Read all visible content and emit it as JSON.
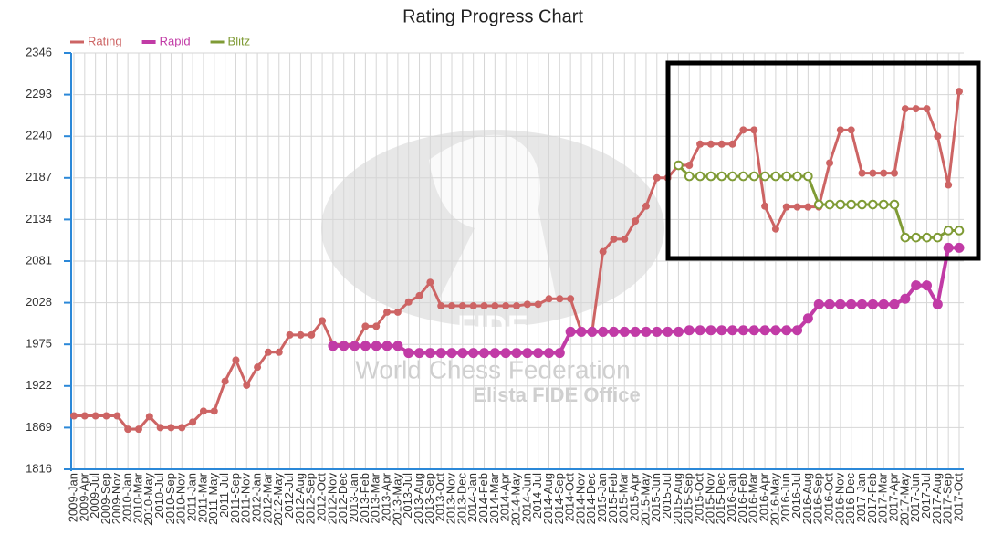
{
  "chart_data": {
    "type": "line",
    "title": "Rating Progress Chart",
    "categories": [
      "2009-Jan",
      "2009-Apr",
      "2009-Jul",
      "2009-Sep",
      "2009-Nov",
      "2010-Jan",
      "2010-Mar",
      "2010-May",
      "2010-Jul",
      "2010-Sep",
      "2010-Nov",
      "2011-Jan",
      "2011-Mar",
      "2011-May",
      "2011-Jul",
      "2011-Sep",
      "2011-Nov",
      "2012-Jan",
      "2012-Mar",
      "2012-May",
      "2012-Jul",
      "2012-Aug",
      "2012-Sep",
      "2012-Oct",
      "2012-Nov",
      "2012-Dec",
      "2013-Jan",
      "2013-Feb",
      "2013-Mar",
      "2013-Apr",
      "2013-May",
      "2013-Jul",
      "2013-Aug",
      "2013-Sep",
      "2013-Oct",
      "2013-Nov",
      "2013-Dec",
      "2014-Jan",
      "2014-Feb",
      "2014-Mar",
      "2014-Apr",
      "2014-May",
      "2014-Jun",
      "2014-Jul",
      "2014-Aug",
      "2014-Sep",
      "2014-Oct",
      "2014-Nov",
      "2014-Dec",
      "2015-Jan",
      "2015-Feb",
      "2015-Mar",
      "2015-Apr",
      "2015-May",
      "2015-Jun",
      "2015-Jul",
      "2015-Aug",
      "2015-Sep",
      "2015-Oct",
      "2015-Nov",
      "2015-Dec",
      "2016-Jan",
      "2016-Feb",
      "2016-Mar",
      "2016-Apr",
      "2016-May",
      "2016-Jun",
      "2016-Jul",
      "2016-Aug",
      "2016-Sep",
      "2016-Oct",
      "2016-Nov",
      "2016-Dec",
      "2017-Jan",
      "2017-Feb",
      "2017-Mar",
      "2017-Apr",
      "2017-May",
      "2017-Jun",
      "2017-Jul",
      "2017-Aug",
      "2017-Sep",
      "2017-Oct"
    ],
    "series": [
      {
        "name": "Rating",
        "color": "#cd6464",
        "marker": "dot",
        "values": [
          1884,
          1884,
          1884,
          1884,
          1884,
          1867,
          1867,
          1883,
          1869,
          1869,
          1869,
          1876,
          1890,
          1890,
          1928,
          1955,
          1923,
          1946,
          1965,
          1965,
          1987,
          1987,
          1987,
          2005,
          1975,
          1975,
          1975,
          1998,
          1998,
          2016,
          2016,
          2029,
          2037,
          2054,
          2024,
          2024,
          2024,
          2024,
          2024,
          2024,
          2024,
          2024,
          2026,
          2026,
          2033,
          2033,
          2033,
          1991,
          1991,
          2093,
          2109,
          2109,
          2132,
          2151,
          2187,
          2187,
          2203,
          2203,
          2230,
          2230,
          2230,
          2230,
          2248,
          2248,
          2151,
          2122,
          2150,
          2150,
          2150,
          2150,
          2206,
          2248,
          2248,
          2193,
          2193,
          2193,
          2193,
          2275,
          2275,
          2275,
          2240,
          2178,
          2297
        ]
      },
      {
        "name": "Rapid",
        "color": "#c13ba6",
        "marker": "big",
        "values": [
          null,
          null,
          null,
          null,
          null,
          null,
          null,
          null,
          null,
          null,
          null,
          null,
          null,
          null,
          null,
          null,
          null,
          null,
          null,
          null,
          null,
          null,
          null,
          null,
          1973,
          1973,
          1973,
          1973,
          1973,
          1973,
          1973,
          1964,
          1964,
          1964,
          1964,
          1964,
          1964,
          1964,
          1964,
          1964,
          1964,
          1964,
          1964,
          1964,
          1964,
          1964,
          1991,
          1991,
          1991,
          1991,
          1991,
          1991,
          1991,
          1991,
          1991,
          1991,
          1991,
          1993,
          1993,
          1993,
          1993,
          1993,
          1993,
          1993,
          1993,
          1993,
          1993,
          1993,
          2008,
          2026,
          2026,
          2026,
          2026,
          2026,
          2026,
          2026,
          2026,
          2033,
          2050,
          2050,
          2026,
          2098,
          2098
        ]
      },
      {
        "name": "Blitz",
        "color": "#7f9b35",
        "marker": "ring",
        "values": [
          null,
          null,
          null,
          null,
          null,
          null,
          null,
          null,
          null,
          null,
          null,
          null,
          null,
          null,
          null,
          null,
          null,
          null,
          null,
          null,
          null,
          null,
          null,
          null,
          null,
          null,
          null,
          null,
          null,
          null,
          null,
          null,
          null,
          null,
          null,
          null,
          null,
          null,
          null,
          null,
          null,
          null,
          null,
          null,
          null,
          null,
          null,
          null,
          null,
          null,
          null,
          null,
          null,
          null,
          null,
          null,
          2203,
          2189,
          2189,
          2189,
          2189,
          2189,
          2189,
          2189,
          2189,
          2189,
          2189,
          2189,
          2189,
          2153,
          2153,
          2153,
          2153,
          2153,
          2153,
          2153,
          2153,
          2111,
          2111,
          2111,
          2111,
          2120,
          2120
        ]
      }
    ],
    "ylim": [
      1816,
      2346
    ],
    "yticks": [
      1816,
      1869,
      1922,
      1975,
      2028,
      2081,
      2134,
      2187,
      2240,
      2293,
      2346
    ],
    "grid": true,
    "legend": "top-left",
    "watermark": [
      "FIDE",
      "World Chess Federation",
      "Elista FIDE Office"
    ]
  }
}
